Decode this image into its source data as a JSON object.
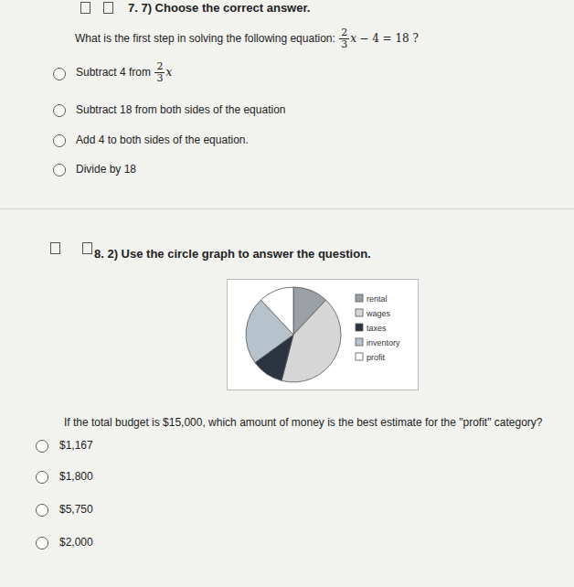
{
  "question7": {
    "title": "7. 7) Choose the correct answer.",
    "prompt": "What is the first step in solving the following equation:",
    "equation": {
      "numerator": "2",
      "denominator": "3",
      "variable": "x",
      "rest": "− 4 = 18 ?"
    },
    "options": [
      {
        "text": "Subtract 4 from",
        "numerator": "2",
        "denominator": "3",
        "variable": "x"
      },
      {
        "text": "Subtract 18 from both sides of the equation"
      },
      {
        "text": "Add 4 to both sides of the equation."
      },
      {
        "text": "Divide by 18"
      }
    ]
  },
  "question8": {
    "title": "8. 2) Use the circle graph to answer the question.",
    "prompt": "If the total budget is $15,000, which amount of money is the best estimate for the \"profit\" category?",
    "options": [
      {
        "text": "$1,167"
      },
      {
        "text": "$1,800"
      },
      {
        "text": "$5,750"
      },
      {
        "text": "$2,000"
      }
    ]
  },
  "chart_data": {
    "type": "pie",
    "categories": [
      "rental",
      "wages",
      "taxes",
      "inventory",
      "profit"
    ],
    "values": [
      12,
      42,
      11,
      23,
      12
    ],
    "colors": [
      "#9aa0a6",
      "#d6d6d6",
      "#2b3440",
      "#b7c3cc",
      "#ffffff"
    ],
    "legend": "right"
  }
}
